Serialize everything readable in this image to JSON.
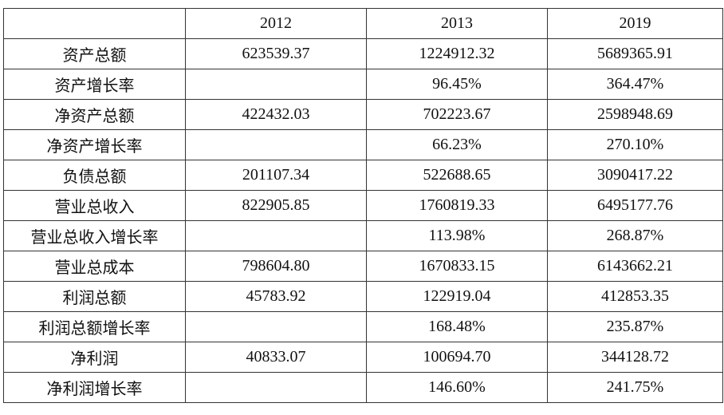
{
  "table": {
    "header": [
      "2012",
      "2013",
      "2019"
    ],
    "rows": [
      [
        "资产总额",
        "623539.37",
        "1224912.32",
        "5689365.91"
      ],
      [
        "资产增长率",
        null,
        "96.45%",
        "364.47%"
      ],
      [
        "净资产总额",
        "422432.03",
        "702223.67",
        "2598948.69"
      ],
      [
        "净资产增长率",
        null,
        "66.23%",
        "270.10%"
      ],
      [
        "负债总额",
        "201107.34",
        "522688.65",
        "3090417.22"
      ],
      [
        "营业总收入",
        "822905.85",
        "1760819.33",
        "6495177.76"
      ],
      [
        "营业总收入增长率",
        null,
        "113.98%",
        "268.87%"
      ],
      [
        "营业总成本",
        "798604.80",
        "1670833.15",
        "6143662.21"
      ],
      [
        "利润总额",
        "45783.92",
        "122919.04",
        "412853.35"
      ],
      [
        "利润总额增长率",
        null,
        "168.48%",
        "235.87%"
      ],
      [
        "净利润",
        "40833.07",
        "100694.70",
        "344128.72"
      ],
      [
        "净利润增长率",
        null,
        "146.60%",
        "241.75%"
      ]
    ]
  }
}
